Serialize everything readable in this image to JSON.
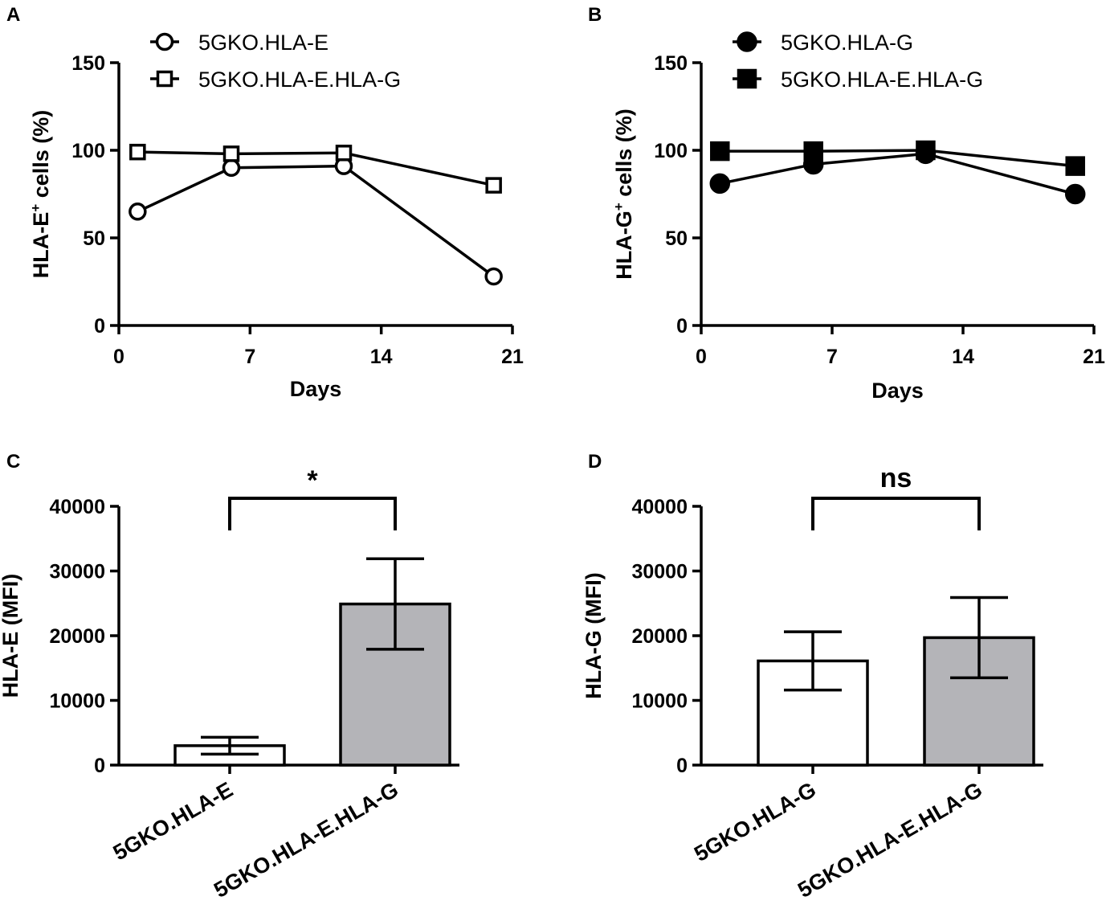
{
  "chart_data": [
    {
      "panel": "A",
      "type": "line",
      "ylabel": "HLA-E",
      "ylabel_sup": "+",
      "ylabel_rest": " cells (%)",
      "xlabel": "Days",
      "xlim": [
        0,
        21
      ],
      "ylim": [
        0,
        150
      ],
      "xticks": [
        0,
        7,
        14,
        21
      ],
      "yticks": [
        0,
        50,
        100,
        150
      ],
      "legend_position": "top-left",
      "series": [
        {
          "name": "5GKO.HLA-E",
          "marker": "circle",
          "filled": false,
          "x": [
            1,
            6,
            12,
            20
          ],
          "y": [
            65,
            90,
            91,
            28
          ]
        },
        {
          "name": "5GKO.HLA-E.HLA-G",
          "marker": "square",
          "filled": false,
          "x": [
            1,
            6,
            12,
            20
          ],
          "y": [
            99,
            98,
            98.5,
            80
          ]
        }
      ]
    },
    {
      "panel": "B",
      "type": "line",
      "ylabel": "HLA-G",
      "ylabel_sup": "+",
      "ylabel_rest": " cells (%)",
      "xlabel": "Days",
      "xlim": [
        0,
        21
      ],
      "ylim": [
        0,
        150
      ],
      "xticks": [
        0,
        7,
        14,
        21
      ],
      "yticks": [
        0,
        50,
        100,
        150
      ],
      "legend_position": "top-left",
      "series": [
        {
          "name": "5GKO.HLA-G",
          "marker": "circle",
          "filled": true,
          "x": [
            1,
            6,
            12,
            20
          ],
          "y": [
            81,
            92,
            98,
            75
          ]
        },
        {
          "name": "5GKO.HLA-E.HLA-G",
          "marker": "square",
          "filled": true,
          "x": [
            1,
            6,
            12,
            20
          ],
          "y": [
            99.5,
            99.5,
            100,
            91
          ]
        }
      ]
    },
    {
      "panel": "C",
      "type": "bar",
      "ylabel": "HLA-E (MFI)",
      "ylim": [
        0,
        40000
      ],
      "yticks": [
        0,
        10000,
        20000,
        30000,
        40000
      ],
      "categories": [
        "5GKO.HLA-E",
        "5GKO.HLA-E.HLA-G"
      ],
      "values": [
        3000,
        24900
      ],
      "errors": [
        1300,
        7000
      ],
      "bar_colors": [
        "#ffffff",
        "#b4b4b8"
      ],
      "significance": "*"
    },
    {
      "panel": "D",
      "type": "bar",
      "ylabel": "HLA-G (MFI)",
      "ylim": [
        0,
        40000
      ],
      "yticks": [
        0,
        10000,
        20000,
        30000,
        40000
      ],
      "categories": [
        "5GKO.HLA-G",
        "5GKO.HLA-E.HLA-G"
      ],
      "values": [
        16100,
        19700
      ],
      "errors": [
        4500,
        6200
      ],
      "bar_colors": [
        "#ffffff",
        "#b4b4b8"
      ],
      "significance": "ns"
    }
  ]
}
